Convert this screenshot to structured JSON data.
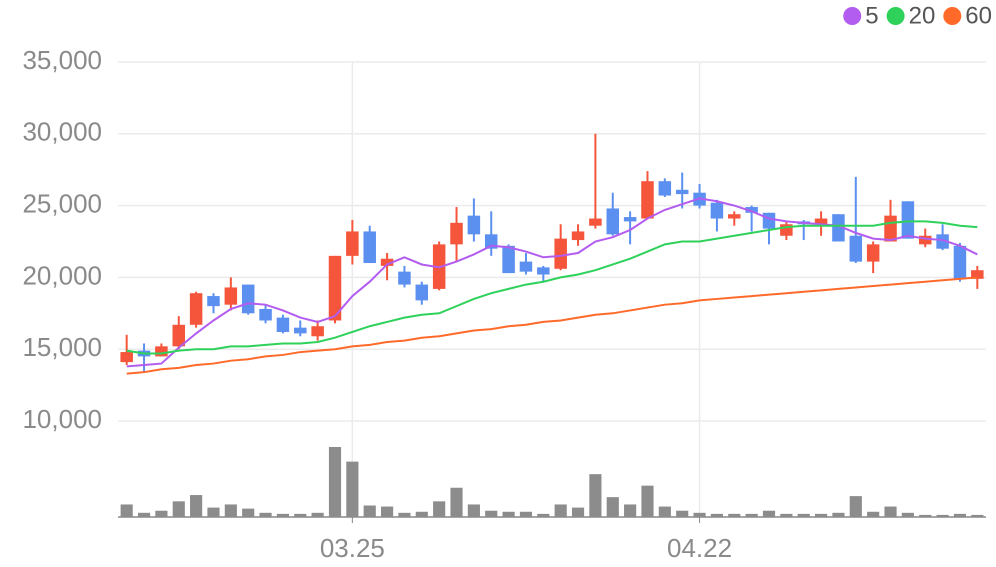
{
  "chart_data": {
    "type": "candlestick",
    "categories": [
      null,
      null,
      null,
      null,
      null,
      null,
      null,
      null,
      null,
      null,
      null,
      null,
      null,
      "03.25",
      null,
      null,
      null,
      null,
      null,
      null,
      null,
      null,
      null,
      null,
      null,
      null,
      null,
      null,
      null,
      null,
      null,
      null,
      null,
      "04.22",
      null,
      null,
      null,
      null,
      null,
      null,
      null,
      null,
      null,
      null,
      null,
      null,
      null,
      null,
      null,
      null
    ],
    "open": [
      14100,
      14900,
      14500,
      15200,
      16700,
      18700,
      18100,
      19500,
      17800,
      17200,
      16500,
      15900,
      17000,
      21500,
      23200,
      20800,
      20400,
      19500,
      19200,
      22300,
      24300,
      23000,
      22200,
      21100,
      20700,
      20600,
      22600,
      23600,
      24800,
      24200,
      24100,
      26700,
      26100,
      25900,
      25200,
      24100,
      24900,
      24500,
      22900,
      23900,
      23700,
      24400,
      22900,
      21100,
      22500,
      25300,
      22300,
      23000,
      22200,
      19900
    ],
    "high": [
      16000,
      15400,
      15400,
      17300,
      19000,
      18900,
      20000,
      19500,
      18100,
      17400,
      17000,
      17000,
      21500,
      24000,
      23600,
      21700,
      20800,
      19700,
      22500,
      24900,
      25500,
      24600,
      22300,
      21700,
      20800,
      23700,
      23700,
      30000,
      25900,
      24600,
      27400,
      26900,
      27300,
      26500,
      25400,
      24600,
      25000,
      24500,
      23900,
      24000,
      24600,
      24400,
      27000,
      22500,
      25400,
      25300,
      23400,
      23700,
      22400,
      20800
    ],
    "low": [
      13900,
      13400,
      14500,
      15000,
      16500,
      17500,
      17700,
      17400,
      16800,
      16100,
      15900,
      15600,
      16800,
      20900,
      21000,
      19800,
      19300,
      18100,
      19100,
      21100,
      22500,
      21500,
      20300,
      20200,
      19700,
      20500,
      22200,
      23400,
      22900,
      22300,
      24100,
      25600,
      24800,
      24800,
      23200,
      23600,
      23200,
      22300,
      22600,
      22600,
      22900,
      22500,
      21000,
      20300,
      22500,
      22700,
      22100,
      21900,
      19700,
      19200
    ],
    "close": [
      14800,
      14500,
      15200,
      16700,
      18900,
      18000,
      19300,
      17500,
      17000,
      16200,
      16100,
      16600,
      21500,
      23200,
      21000,
      21300,
      19500,
      18400,
      22300,
      23800,
      23000,
      22000,
      20300,
      20400,
      20200,
      22700,
      23200,
      24100,
      23000,
      23900,
      26700,
      25700,
      25800,
      25000,
      24100,
      24400,
      24500,
      23400,
      23700,
      23700,
      24100,
      22500,
      21100,
      22300,
      24300,
      22700,
      22900,
      22000,
      19900,
      20500
    ],
    "volume": [
      12,
      4,
      6,
      15,
      21,
      9,
      12,
      8,
      4,
      3,
      3,
      4,
      67,
      53,
      11,
      10,
      4,
      5,
      15,
      28,
      12,
      6,
      5,
      5,
      3,
      12,
      9,
      41,
      19,
      12,
      30,
      10,
      6,
      4,
      3,
      3,
      3,
      6,
      3,
      3,
      3,
      4,
      20,
      5,
      10,
      4,
      2,
      2,
      3,
      2
    ],
    "up_color": "#f4553b",
    "down_color": "#5b8ff0",
    "volume_color": "#8c8c8c",
    "series": [
      {
        "name": "5",
        "color": "#b35cf0",
        "values": [
          13800,
          13900,
          14000,
          15100,
          16100,
          17000,
          17800,
          18200,
          18100,
          17700,
          17200,
          16900,
          17300,
          18700,
          19700,
          20900,
          21400,
          20900,
          20700,
          21100,
          21600,
          22200,
          22100,
          21800,
          21400,
          21500,
          21700,
          22500,
          22800,
          23300,
          24100,
          24700,
          25100,
          25500,
          25300,
          25000,
          24600,
          24100,
          23900,
          23800,
          23700,
          23600,
          23100,
          22700,
          22600,
          22900,
          22700,
          22600,
          22200,
          21600
        ]
      },
      {
        "name": "20",
        "color": "#2ed15a",
        "values": [
          14900,
          14700,
          14700,
          14900,
          15000,
          15000,
          15200,
          15200,
          15300,
          15400,
          15400,
          15500,
          15800,
          16200,
          16600,
          16900,
          17200,
          17400,
          17500,
          18000,
          18500,
          18900,
          19200,
          19500,
          19700,
          20000,
          20200,
          20500,
          20900,
          21300,
          21800,
          22300,
          22500,
          22500,
          22700,
          22900,
          23100,
          23300,
          23500,
          23600,
          23600,
          23600,
          23600,
          23600,
          23800,
          23900,
          23900,
          23800,
          23600,
          23500
        ]
      },
      {
        "name": "60",
        "color": "#ff6a2b",
        "values": [
          13300,
          13400,
          13600,
          13700,
          13900,
          14000,
          14200,
          14300,
          14500,
          14600,
          14800,
          14900,
          15000,
          15200,
          15300,
          15500,
          15600,
          15800,
          15900,
          16100,
          16300,
          16400,
          16600,
          16700,
          16900,
          17000,
          17200,
          17400,
          17500,
          17700,
          17900,
          18100,
          18200,
          18400,
          18500,
          18600,
          18700,
          18800,
          18900,
          19000,
          19100,
          19200,
          19300,
          19400,
          19500,
          19600,
          19700,
          19800,
          19900,
          20000
        ]
      }
    ],
    "ylim": [
      10000,
      35000
    ],
    "yticks": [
      {
        "value": 10000,
        "label": "10,000"
      },
      {
        "value": 15000,
        "label": "15,000"
      },
      {
        "value": 20000,
        "label": "20,000"
      },
      {
        "value": 25000,
        "label": "25,000"
      },
      {
        "value": 30000,
        "label": "30,000"
      },
      {
        "value": 35000,
        "label": "35,000"
      }
    ],
    "grid": true
  }
}
